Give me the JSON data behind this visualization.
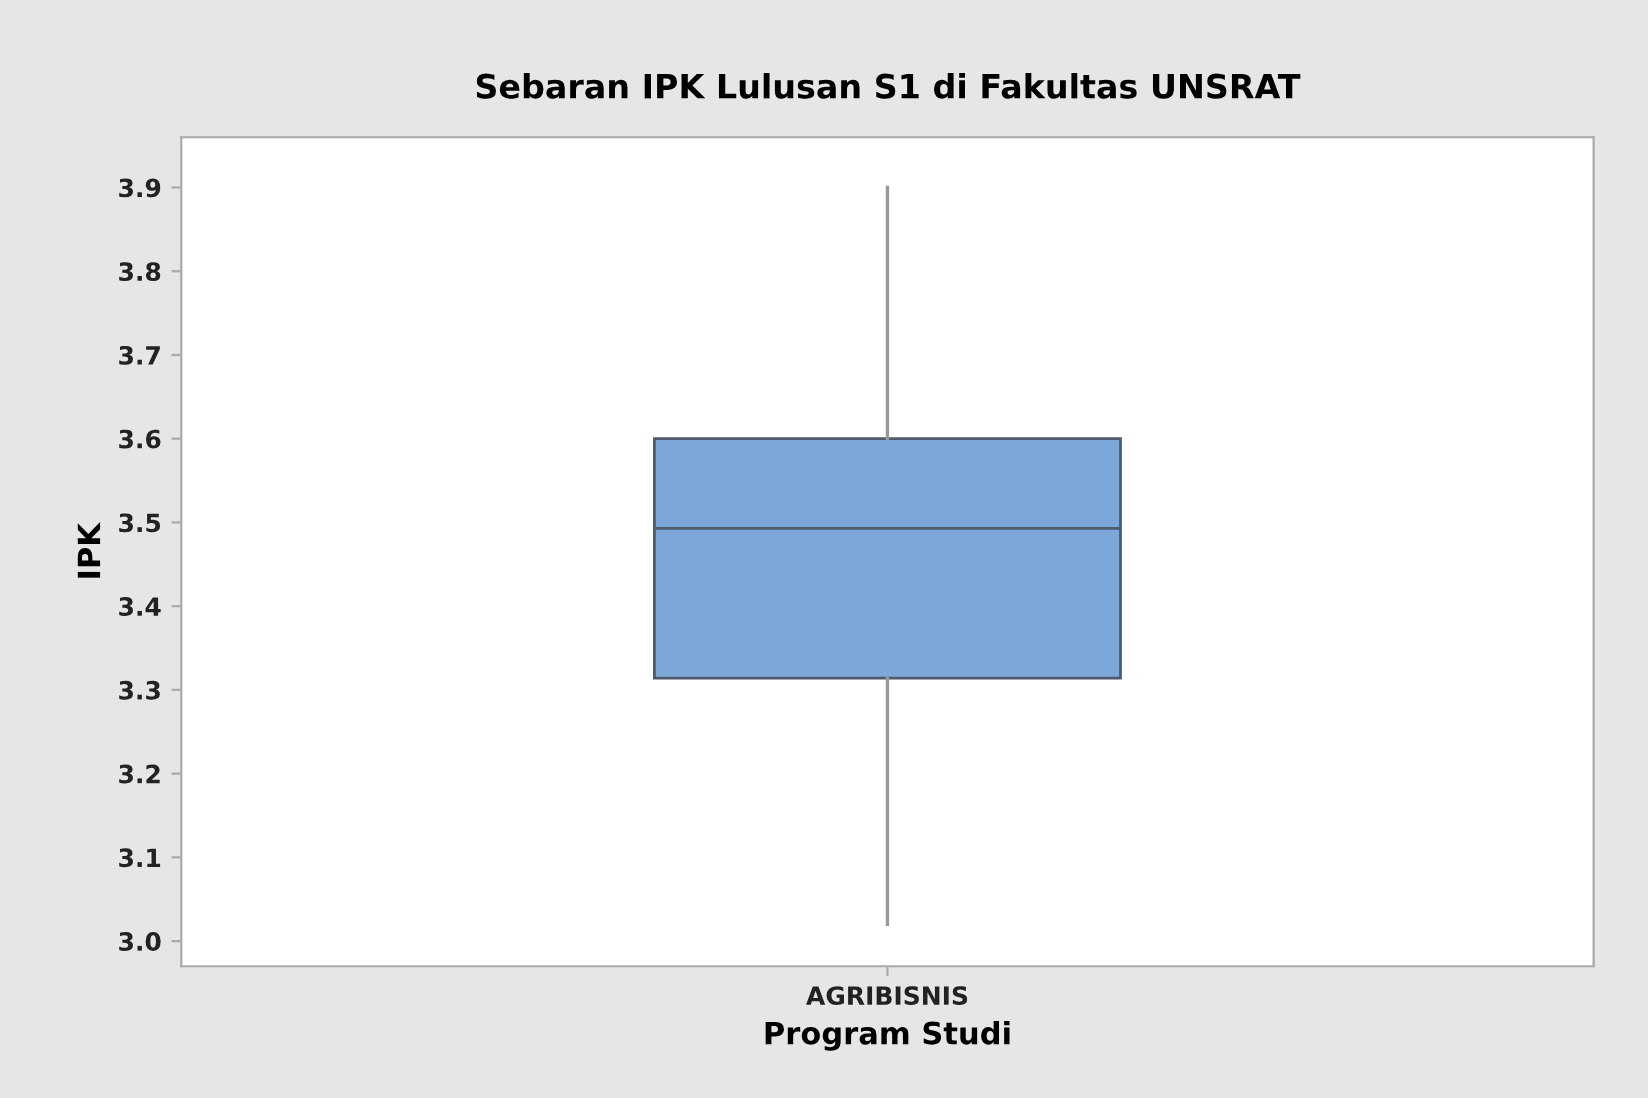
{
  "chart_data": {
    "type": "box",
    "title": "Sebaran IPK Lulusan S1 di Fakultas UNSRAT",
    "xlabel": "Program Studi",
    "ylabel": "IPK",
    "categories": [
      "AGRIBISNIS"
    ],
    "boxes": [
      {
        "low": 3.02,
        "q1": 3.314,
        "median": 3.493,
        "q3": 3.6,
        "high": 3.9
      }
    ],
    "color": "#7ba7d9",
    "ylim": [
      2.97,
      3.96
    ],
    "yticks": [
      {
        "value": 3.0,
        "label": "3.0"
      },
      3.1,
      3.2,
      3.3,
      3.4,
      3.5,
      3.6,
      3.7,
      3.8,
      3.9
    ],
    "grid": false,
    "legend": false
  }
}
